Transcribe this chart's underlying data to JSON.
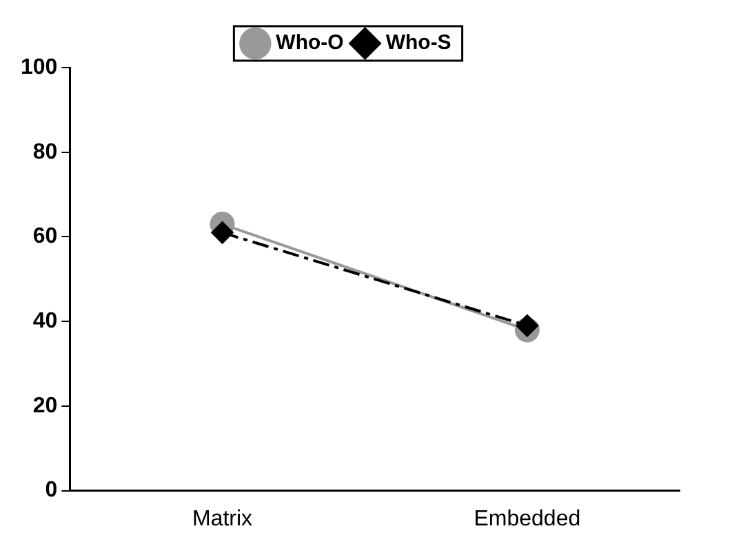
{
  "chart_data": {
    "type": "line",
    "categories": [
      "Matrix",
      "Embedded"
    ],
    "series": [
      {
        "name": "Who-O",
        "color": "#999999",
        "values": [
          63,
          38
        ],
        "marker": "circle",
        "line_style": "solid"
      },
      {
        "name": "Who-S",
        "color": "#000000",
        "values": [
          61,
          39
        ],
        "marker": "diamond",
        "line_style": "dashed"
      }
    ],
    "ylim": [
      0,
      100
    ],
    "yticks": [
      0,
      20,
      40,
      60,
      80,
      100
    ],
    "grid": false,
    "legend": "top"
  }
}
